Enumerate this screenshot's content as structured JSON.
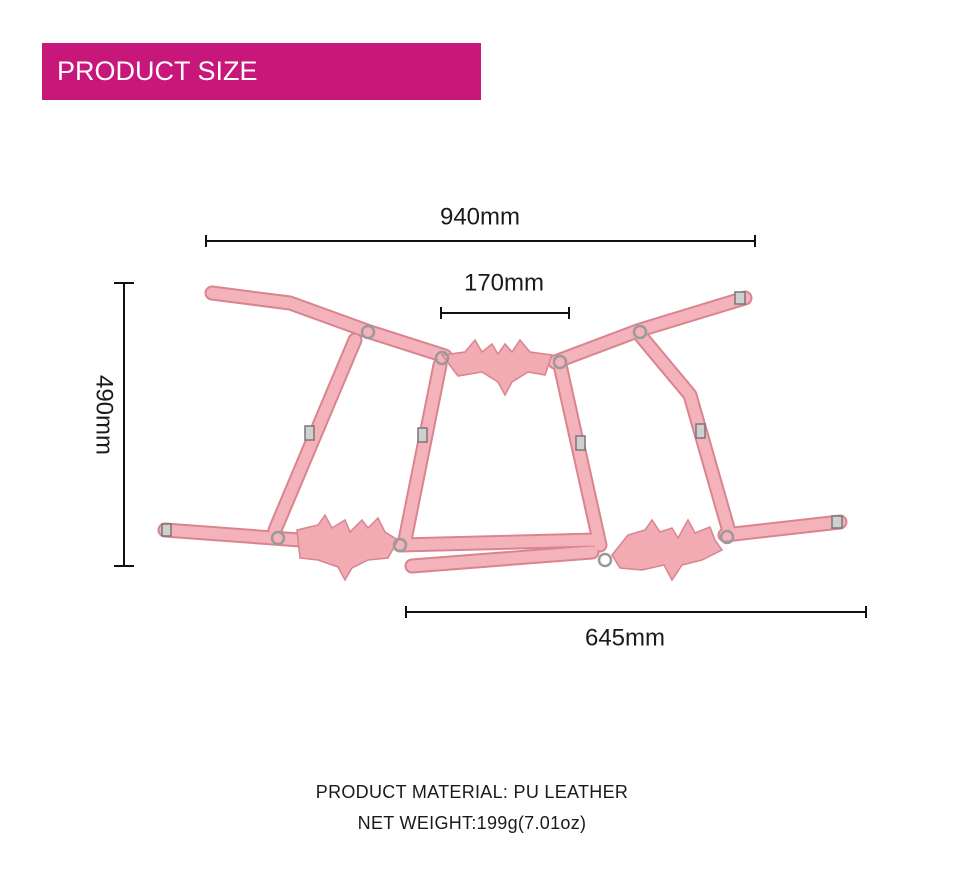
{
  "header": {
    "title": "PRODUCT SIZE"
  },
  "dimensions": {
    "width": "940mm",
    "center": "170mm",
    "height": "490mm",
    "bottom": "645mm"
  },
  "info": {
    "material": "PRODUCT MATERIAL: PU LEATHER",
    "weight": "NET WEIGHT:199g(7.01oz)"
  }
}
